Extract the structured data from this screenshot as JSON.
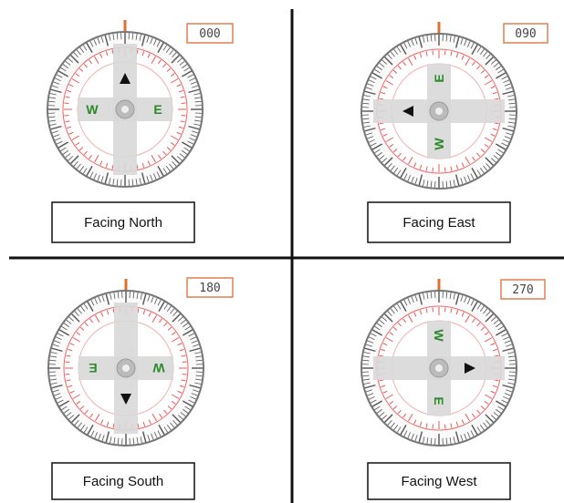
{
  "panels": [
    {
      "heading": "000",
      "label": "Facing North",
      "letters": [
        "W",
        "E"
      ]
    },
    {
      "heading": "090",
      "label": "Facing East",
      "letters": [
        "W",
        "E"
      ]
    },
    {
      "heading": "180",
      "label": "Facing South",
      "letters": [
        "W",
        "E"
      ]
    },
    {
      "heading": "270",
      "label": "Facing West",
      "letters": [
        "W",
        "E"
      ]
    }
  ]
}
